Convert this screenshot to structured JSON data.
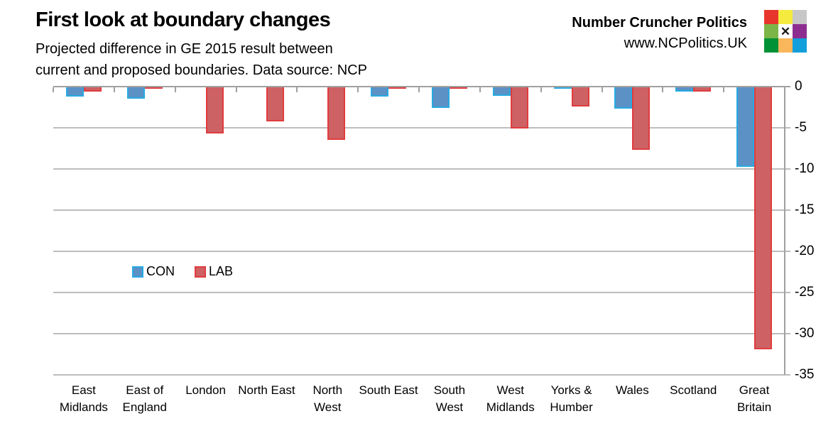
{
  "header": {
    "title": "First look at boundary changes",
    "subtitle_line1": "Projected difference in GE 2015 result between",
    "subtitle_line2": "current and proposed boundaries. Data source: NCP"
  },
  "brand": {
    "name": "Number Cruncher Politics",
    "url": "www.NCPolitics.UK",
    "logo_grid_colors": [
      "#e8352c",
      "#f5eb3f",
      "#c7c7c7",
      "#7cb648",
      "#ffffff",
      "#8e2d90",
      "#009136",
      "#f9b65b",
      "#129fdb"
    ],
    "logo_center_glyph": "✕"
  },
  "chart_data": {
    "type": "bar",
    "title": "First look at boundary changes",
    "subtitle": "Projected difference in GE 2015 result between current and proposed boundaries. Data source: NCP",
    "categories": [
      "East Midlands",
      "East of England",
      "London",
      "North East",
      "North West",
      "South East",
      "South West",
      "West Midlands",
      "Yorks & Humber",
      "Wales",
      "Scotland",
      "Great Britain"
    ],
    "category_label_lines": [
      [
        "East",
        "Midlands"
      ],
      [
        "East of",
        "England"
      ],
      [
        "London"
      ],
      [
        "North East"
      ],
      [
        "North",
        "West"
      ],
      [
        "South East"
      ],
      [
        "South",
        "West"
      ],
      [
        "West",
        "Midlands"
      ],
      [
        "Yorks &",
        "Humber"
      ],
      [
        "Wales"
      ],
      [
        "Scotland"
      ],
      [
        "Great",
        "Britain"
      ]
    ],
    "series": [
      {
        "name": "CON",
        "fill": "#5b91c5",
        "border": "#27aae1",
        "values": [
          -1.2,
          -1.5,
          0,
          0,
          0,
          -1.2,
          -2.6,
          -1.1,
          -0.3,
          -2.7,
          -0.6,
          -9.7
        ]
      },
      {
        "name": "LAB",
        "fill": "#cd6163",
        "border": "#e03c3e",
        "values": [
          -0.6,
          -0.1,
          -5.7,
          -4.2,
          -6.5,
          -0.1,
          -0.1,
          -5.1,
          -2.4,
          -7.7,
          -0.6,
          -31.9
        ]
      }
    ],
    "ylim": [
      -35,
      0
    ],
    "yticks": [
      0,
      -5,
      -10,
      -15,
      -20,
      -25,
      -30,
      -35
    ],
    "xlabel": "",
    "ylabel": "",
    "grid": true,
    "gridline_color": "#bdbdbd",
    "axis_color": "#a0a0a0",
    "legend_position": "middle-left"
  }
}
